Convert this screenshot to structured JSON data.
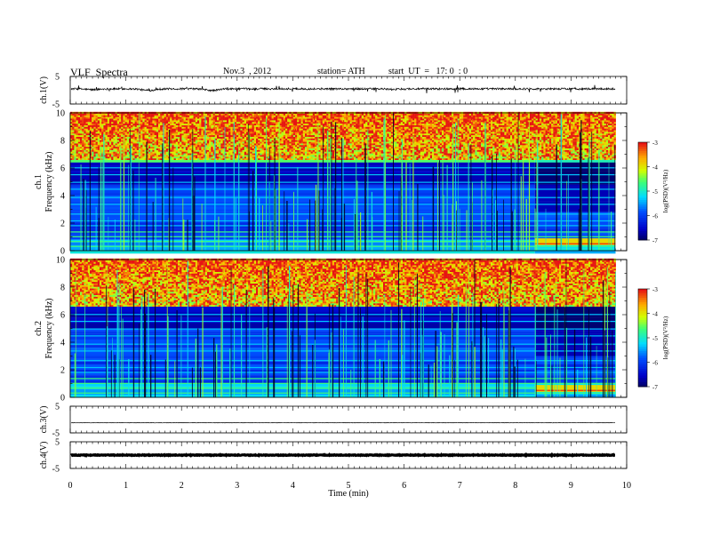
{
  "header": {
    "title": "VLF  Spectra",
    "date": "Nov.3  , 2012",
    "station": "station= ATH",
    "start": "start  UT  =   17: 0  : 0"
  },
  "chart_data": [
    {
      "type": "line",
      "name": "ch1-waveform",
      "ylabel": "ch.1(V)",
      "ylim": [
        -5,
        5
      ],
      "yticks": [
        "5",
        "-5"
      ],
      "xlim": [
        0,
        10
      ],
      "baseline": 0.5,
      "dips": [
        [
          1.4,
          -0.6
        ],
        [
          2.55,
          -0.6
        ],
        [
          0.4,
          -0.3
        ],
        [
          5.8,
          -0.2
        ]
      ]
    },
    {
      "type": "heatmap",
      "name": "ch1-spectrogram",
      "title_lines": [
        "ch.1",
        "Frequency  (kHz)"
      ],
      "ylim": [
        0,
        10
      ],
      "yticks": [
        "0",
        "2",
        "4",
        "6",
        "8",
        "10"
      ],
      "xlim": [
        0,
        10
      ],
      "data_end_min": 9.8,
      "change_at_min": 8.35,
      "colorbar": {
        "label": "log(PSD)(V²/Hz)",
        "range": [
          -7,
          -3
        ],
        "ticks": [
          "-3",
          "-4",
          "-5",
          "-6",
          "-7"
        ]
      }
    },
    {
      "type": "heatmap",
      "name": "ch2-spectrogram",
      "title_lines": [
        "ch.2",
        "Frequency  (kHz)"
      ],
      "ylim": [
        0,
        10
      ],
      "yticks": [
        "0",
        "2",
        "4",
        "6",
        "8",
        "10"
      ],
      "xlim": [
        0,
        10
      ],
      "data_end_min": 9.8,
      "change_at_min": 8.35,
      "colorbar": {
        "label": "log(PSD)(V²/Hz)",
        "range": [
          -7,
          -3
        ],
        "ticks": [
          "-3",
          "-4",
          "-5",
          "-6",
          "-7"
        ]
      }
    },
    {
      "type": "line",
      "name": "ch3-waveform",
      "ylabel": "ch.3(V)",
      "ylim": [
        -5,
        5
      ],
      "yticks": [
        "5",
        "-5"
      ],
      "xlim": [
        0,
        10
      ],
      "baseline": -1.2
    },
    {
      "type": "line",
      "name": "ch4-waveform",
      "ylabel": "ch.4(V)",
      "ylim": [
        -5,
        5
      ],
      "yticks": [
        "5",
        "-5"
      ],
      "xlim": [
        0,
        10
      ],
      "baseline": 0.0
    }
  ],
  "xaxis": {
    "label": "Time  (min)",
    "ticks": [
      "0",
      "1",
      "2",
      "3",
      "4",
      "5",
      "6",
      "7",
      "8",
      "9",
      "10"
    ]
  }
}
